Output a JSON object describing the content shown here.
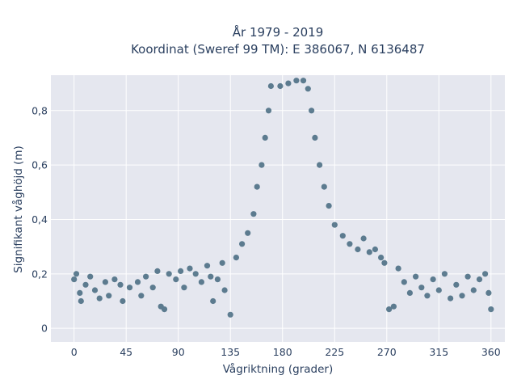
{
  "chart_data": {
    "type": "scatter",
    "title": [
      "År 1979 - 2019",
      "Koordinat (Sweref 99 TM): E 386067, N 6136487"
    ],
    "xlabel": "Vågriktning (grader)",
    "ylabel": "Signifikant våghöjd (m)",
    "xlim": [
      -20,
      372
    ],
    "ylim": [
      -0.05,
      0.93
    ],
    "x_ticks": [
      0,
      45,
      90,
      135,
      180,
      225,
      270,
      315,
      360
    ],
    "x_tick_labels": [
      "0",
      "45",
      "90",
      "135",
      "180",
      "225",
      "270",
      "315",
      "360"
    ],
    "y_ticks": [
      0,
      0.2,
      0.4,
      0.6,
      0.8
    ],
    "y_tick_labels": [
      "0",
      "0,2",
      "0,4",
      "0,6",
      "0,8"
    ],
    "grid": true,
    "legend": "none",
    "marker_color": "#2f5870",
    "plot_background": "#e5e7ef",
    "grid_color": "#ffffff",
    "series": [
      {
        "values": [
          {
            "x": 0,
            "y": 0.18
          },
          {
            "x": 2,
            "y": 0.2
          },
          {
            "x": 5,
            "y": 0.13
          },
          {
            "x": 6,
            "y": 0.1
          },
          {
            "x": 10,
            "y": 0.16
          },
          {
            "x": 14,
            "y": 0.19
          },
          {
            "x": 18,
            "y": 0.14
          },
          {
            "x": 22,
            "y": 0.11
          },
          {
            "x": 27,
            "y": 0.17
          },
          {
            "x": 30,
            "y": 0.12
          },
          {
            "x": 35,
            "y": 0.18
          },
          {
            "x": 40,
            "y": 0.16
          },
          {
            "x": 42,
            "y": 0.1
          },
          {
            "x": 48,
            "y": 0.15
          },
          {
            "x": 55,
            "y": 0.17
          },
          {
            "x": 58,
            "y": 0.12
          },
          {
            "x": 62,
            "y": 0.19
          },
          {
            "x": 68,
            "y": 0.15
          },
          {
            "x": 72,
            "y": 0.21
          },
          {
            "x": 75,
            "y": 0.08
          },
          {
            "x": 78,
            "y": 0.07
          },
          {
            "x": 82,
            "y": 0.2
          },
          {
            "x": 88,
            "y": 0.18
          },
          {
            "x": 92,
            "y": 0.21
          },
          {
            "x": 95,
            "y": 0.15
          },
          {
            "x": 100,
            "y": 0.22
          },
          {
            "x": 105,
            "y": 0.2
          },
          {
            "x": 110,
            "y": 0.17
          },
          {
            "x": 115,
            "y": 0.23
          },
          {
            "x": 118,
            "y": 0.19
          },
          {
            "x": 120,
            "y": 0.1
          },
          {
            "x": 124,
            "y": 0.18
          },
          {
            "x": 128,
            "y": 0.24
          },
          {
            "x": 130,
            "y": 0.14
          },
          {
            "x": 135,
            "y": 0.05
          },
          {
            "x": 140,
            "y": 0.26
          },
          {
            "x": 145,
            "y": 0.31
          },
          {
            "x": 150,
            "y": 0.35
          },
          {
            "x": 155,
            "y": 0.42
          },
          {
            "x": 158,
            "y": 0.52
          },
          {
            "x": 162,
            "y": 0.6
          },
          {
            "x": 165,
            "y": 0.7
          },
          {
            "x": 168,
            "y": 0.8
          },
          {
            "x": 170,
            "y": 0.89
          },
          {
            "x": 178,
            "y": 0.89
          },
          {
            "x": 185,
            "y": 0.9
          },
          {
            "x": 192,
            "y": 0.91
          },
          {
            "x": 198,
            "y": 0.91
          },
          {
            "x": 202,
            "y": 0.88
          },
          {
            "x": 205,
            "y": 0.8
          },
          {
            "x": 208,
            "y": 0.7
          },
          {
            "x": 212,
            "y": 0.6
          },
          {
            "x": 216,
            "y": 0.52
          },
          {
            "x": 220,
            "y": 0.45
          },
          {
            "x": 225,
            "y": 0.38
          },
          {
            "x": 232,
            "y": 0.34
          },
          {
            "x": 238,
            "y": 0.31
          },
          {
            "x": 245,
            "y": 0.29
          },
          {
            "x": 250,
            "y": 0.33
          },
          {
            "x": 255,
            "y": 0.28
          },
          {
            "x": 260,
            "y": 0.29
          },
          {
            "x": 265,
            "y": 0.26
          },
          {
            "x": 268,
            "y": 0.24
          },
          {
            "x": 272,
            "y": 0.07
          },
          {
            "x": 276,
            "y": 0.08
          },
          {
            "x": 280,
            "y": 0.22
          },
          {
            "x": 285,
            "y": 0.17
          },
          {
            "x": 290,
            "y": 0.13
          },
          {
            "x": 295,
            "y": 0.19
          },
          {
            "x": 300,
            "y": 0.15
          },
          {
            "x": 305,
            "y": 0.12
          },
          {
            "x": 310,
            "y": 0.18
          },
          {
            "x": 315,
            "y": 0.14
          },
          {
            "x": 320,
            "y": 0.2
          },
          {
            "x": 325,
            "y": 0.11
          },
          {
            "x": 330,
            "y": 0.16
          },
          {
            "x": 335,
            "y": 0.12
          },
          {
            "x": 340,
            "y": 0.19
          },
          {
            "x": 345,
            "y": 0.14
          },
          {
            "x": 350,
            "y": 0.18
          },
          {
            "x": 355,
            "y": 0.2
          },
          {
            "x": 358,
            "y": 0.13
          },
          {
            "x": 360,
            "y": 0.07
          }
        ]
      }
    ]
  }
}
